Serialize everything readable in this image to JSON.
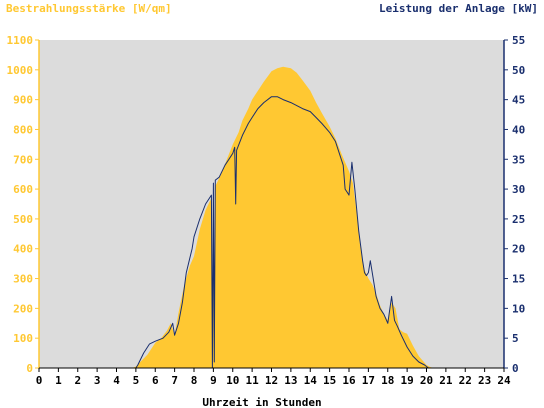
{
  "chart_data": {
    "type": "area",
    "title_left": "Bestrahlungsstärke [W/qm]",
    "title_right": "Leistung der Anlage [kW]",
    "xlabel": "Uhrzeit in Stunden",
    "xlim": [
      0,
      24
    ],
    "x_ticks": [
      "0",
      "1",
      "2",
      "3",
      "4",
      "5",
      "6",
      "7",
      "8",
      "9",
      "10",
      "11",
      "12",
      "13",
      "14",
      "15",
      "16",
      "17",
      "18",
      "19",
      "20",
      "21",
      "22",
      "23",
      "24"
    ],
    "y_left_lim": [
      0,
      1100
    ],
    "y_left_ticks": [
      "0",
      "100",
      "200",
      "300",
      "400",
      "500",
      "600",
      "700",
      "800",
      "900",
      "1000",
      "1100"
    ],
    "y_right_lim": [
      0,
      55
    ],
    "y_right_ticks": [
      "0",
      "5",
      "10",
      "15",
      "20",
      "25",
      "30",
      "35",
      "40",
      "45",
      "50",
      "55"
    ],
    "grid": false,
    "colors": {
      "irradiance": "#ffc832",
      "power": "#1a2f6e",
      "plot_background": "#dcdcdc"
    },
    "series": [
      {
        "name": "Bestrahlungsstärke [W/qm]",
        "axis": "left",
        "kind": "area",
        "x": [
          0,
          4.8,
          5.0,
          5.3,
          5.6,
          6.0,
          6.3,
          6.6,
          6.8,
          7.0,
          7.2,
          7.5,
          7.8,
          8.0,
          8.3,
          8.6,
          8.9,
          8.95,
          9.0,
          9.05,
          9.1,
          9.4,
          9.7,
          10.0,
          10.3,
          10.5,
          10.8,
          11.0,
          11.3,
          11.6,
          12.0,
          12.3,
          12.6,
          13.0,
          13.3,
          13.6,
          14.0,
          14.3,
          14.6,
          15.0,
          15.3,
          15.6,
          15.8,
          16.0,
          16.2,
          16.4,
          16.6,
          16.8,
          17.0,
          17.2,
          17.4,
          17.6,
          17.8,
          18.0,
          18.2,
          18.4,
          18.6,
          18.8,
          19.0,
          19.3,
          19.6,
          20.0,
          20.2,
          20.4,
          24
        ],
        "values": [
          0,
          0,
          5,
          25,
          45,
          85,
          100,
          125,
          150,
          110,
          185,
          280,
          345,
          375,
          465,
          530,
          570,
          0,
          590,
          10,
          610,
          650,
          700,
          750,
          790,
          830,
          870,
          900,
          930,
          960,
          995,
          1005,
          1010,
          1005,
          990,
          965,
          930,
          890,
          855,
          810,
          770,
          720,
          690,
          660,
          620,
          520,
          400,
          330,
          300,
          280,
          250,
          210,
          180,
          160,
          220,
          200,
          130,
          120,
          115,
          75,
          40,
          10,
          3,
          0,
          0
        ]
      },
      {
        "name": "Leistung der Anlage [kW]",
        "axis": "right",
        "kind": "line",
        "x": [
          0,
          5.0,
          5.1,
          5.4,
          5.7,
          6.0,
          6.4,
          6.7,
          6.9,
          7.0,
          7.2,
          7.4,
          7.6,
          7.9,
          8.0,
          8.3,
          8.6,
          8.9,
          8.95,
          9.0,
          9.05,
          9.1,
          9.3,
          9.6,
          9.8,
          10.0,
          10.1,
          10.15,
          10.2,
          10.5,
          10.8,
          11.0,
          11.3,
          11.6,
          12.0,
          12.3,
          12.6,
          13.0,
          13.3,
          13.6,
          14.0,
          14.3,
          14.6,
          15.0,
          15.3,
          15.5,
          15.7,
          15.8,
          15.9,
          16.0,
          16.15,
          16.3,
          16.5,
          16.7,
          16.8,
          16.9,
          17.0,
          17.1,
          17.25,
          17.4,
          17.6,
          17.8,
          18.0,
          18.2,
          18.35,
          18.5,
          18.7,
          19.0,
          19.3,
          19.6,
          19.9,
          20.1,
          20.3,
          24
        ],
        "values": [
          0,
          0,
          0.5,
          2.5,
          4,
          4.5,
          5,
          6,
          7.5,
          5.5,
          7.5,
          11,
          16,
          20,
          22,
          25,
          27.5,
          29,
          0,
          31,
          1,
          31.5,
          32,
          34,
          35,
          36,
          37,
          27.5,
          36.5,
          39,
          41,
          42,
          43.5,
          44.5,
          45.5,
          45.5,
          45,
          44.5,
          44,
          43.5,
          43,
          42,
          41,
          39.5,
          38,
          36,
          34,
          30,
          29.5,
          29,
          34.5,
          30,
          23,
          18,
          16,
          15.5,
          16,
          18,
          15,
          12,
          10,
          9,
          7.5,
          12,
          8,
          7,
          5.5,
          3.5,
          2,
          1,
          0.5,
          0,
          0,
          0
        ]
      }
    ]
  }
}
